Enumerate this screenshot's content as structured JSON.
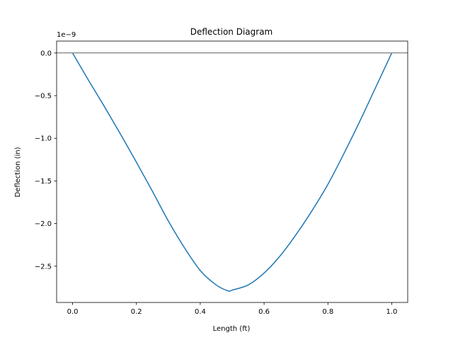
{
  "chart_data": {
    "type": "line",
    "title": "Deflection Diagram",
    "xlabel": "Length (ft)",
    "ylabel": "Deflection (in)",
    "y_offset_label": "1e−9",
    "y_scale": 1e-09,
    "xlim": [
      -0.05,
      1.05
    ],
    "ylim": [
      -2.925,
      0.14
    ],
    "x_ticks": [
      0.0,
      0.2,
      0.4,
      0.6,
      0.8,
      1.0
    ],
    "x_tick_labels": [
      "0.0",
      "0.2",
      "0.4",
      "0.6",
      "0.8",
      "1.0"
    ],
    "y_ticks": [
      0.0,
      -0.5,
      -1.0,
      -1.5,
      -2.0,
      -2.5
    ],
    "y_tick_labels": [
      "0.0",
      "−0.5",
      "−1.0",
      "−1.5",
      "−2.0",
      "−2.5"
    ],
    "reference_line_y": 0,
    "grid": false,
    "series": [
      {
        "color": "#1f77b4",
        "x": [
          0.0,
          0.05,
          0.1,
          0.15,
          0.2,
          0.25,
          0.3,
          0.35,
          0.4,
          0.45,
          0.488,
          0.5,
          0.55,
          0.6,
          0.65,
          0.7,
          0.75,
          0.8,
          0.85,
          0.9,
          0.95,
          1.0
        ],
        "y": [
          0.0,
          -0.32,
          -0.63,
          -0.95,
          -1.28,
          -1.62,
          -1.97,
          -2.28,
          -2.55,
          -2.72,
          -2.79,
          -2.78,
          -2.72,
          -2.58,
          -2.38,
          -2.13,
          -1.85,
          -1.54,
          -1.18,
          -0.8,
          -0.4,
          0.0
        ]
      }
    ]
  }
}
